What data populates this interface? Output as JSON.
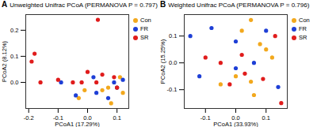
{
  "chart_data": [
    {
      "type": "scatter",
      "panel": "A",
      "title": "Unweighted Unifrac PCoA (PERMANOVA P = 0.797)",
      "xlabel": "PCoA1 (17.29%)",
      "ylabel": "PCoA2 (8.12%)",
      "xlim": [
        -0.21,
        0.14
      ],
      "ylim": [
        -0.1,
        0.26
      ],
      "xticks": [
        -0.2,
        -0.1,
        {
          "value": 0,
          "label": "0.0"
        },
        0.1
      ],
      "yticks": [
        {
          "value": 0,
          "label": "0.0"
        },
        0.1,
        0.2
      ],
      "legend": "right",
      "series": [
        {
          "name": "Con",
          "color": "#f2a81d",
          "x": [
            -0.01,
            0.05,
            0.07,
            0.1,
            0.12,
            0.08,
            -0.03,
            0.11
          ],
          "y": [
            -0.03,
            -0.03,
            -0.02,
            -0.02,
            -0.04,
            -0.08,
            -0.06,
            0.02
          ]
        },
        {
          "name": "FR",
          "color": "#1e3fd6",
          "x": [
            -0.09,
            -0.04,
            0.02,
            0.07,
            0.09,
            0.1,
            0.12,
            0.03
          ],
          "y": [
            0.0,
            -0.05,
            0.02,
            -0.06,
            0.0,
            -0.02,
            0.01,
            -0.04
          ]
        },
        {
          "name": "SR",
          "color": "#e01c1c",
          "x": [
            0.035,
            -0.18,
            -0.19,
            -0.16,
            -0.05,
            -0.02,
            0.03,
            0.05,
            0.0,
            0.1,
            0.09,
            -0.1
          ],
          "y": [
            0.24,
            0.11,
            0.08,
            0.0,
            0.0,
            0.0,
            0.0,
            0.03,
            0.04,
            -0.02,
            0.02,
            0.01
          ]
        }
      ]
    },
    {
      "type": "scatter",
      "panel": "B",
      "title": "Weighted Unifrac PCoA (PERMANOVA P = 0.796)",
      "xlabel": "PCoA1 (33.93%)",
      "ylabel": "PCoA2 (15.25%)",
      "xlim": [
        -0.17,
        0.17
      ],
      "ylim": [
        -0.17,
        0.18
      ],
      "xticks": [
        -0.1,
        {
          "value": 0,
          "label": "0.0"
        },
        0.1
      ],
      "yticks": [
        -0.1,
        {
          "value": 0,
          "label": "0.0"
        },
        0.1
      ],
      "legend": "right",
      "series": [
        {
          "name": "Con",
          "color": "#f2a81d",
          "x": [
            0.02,
            0.05,
            0.08,
            0.1,
            0.0,
            0.05,
            0.12,
            0.06,
            -0.05
          ],
          "y": [
            0.12,
            0.16,
            0.07,
            0.05,
            -0.05,
            -0.07,
            0.02,
            -0.12,
            -0.08
          ]
        },
        {
          "name": "FR",
          "color": "#1e3fd6",
          "x": [
            -0.15,
            -0.08,
            0.0,
            -0.12,
            0.1,
            0.14,
            0.0,
            0.06
          ],
          "y": [
            0.1,
            0.13,
            0.08,
            -0.05,
            0.12,
            -0.09,
            -0.02,
            0.0
          ]
        },
        {
          "name": "SR",
          "color": "#e01c1c",
          "x": [
            -0.1,
            -0.05,
            0.02,
            0.03,
            -0.02,
            0.09,
            0.15,
            0.13
          ],
          "y": [
            0.02,
            0.0,
            0.03,
            -0.04,
            -0.08,
            -0.06,
            -0.15,
            0.1
          ]
        }
      ]
    }
  ]
}
